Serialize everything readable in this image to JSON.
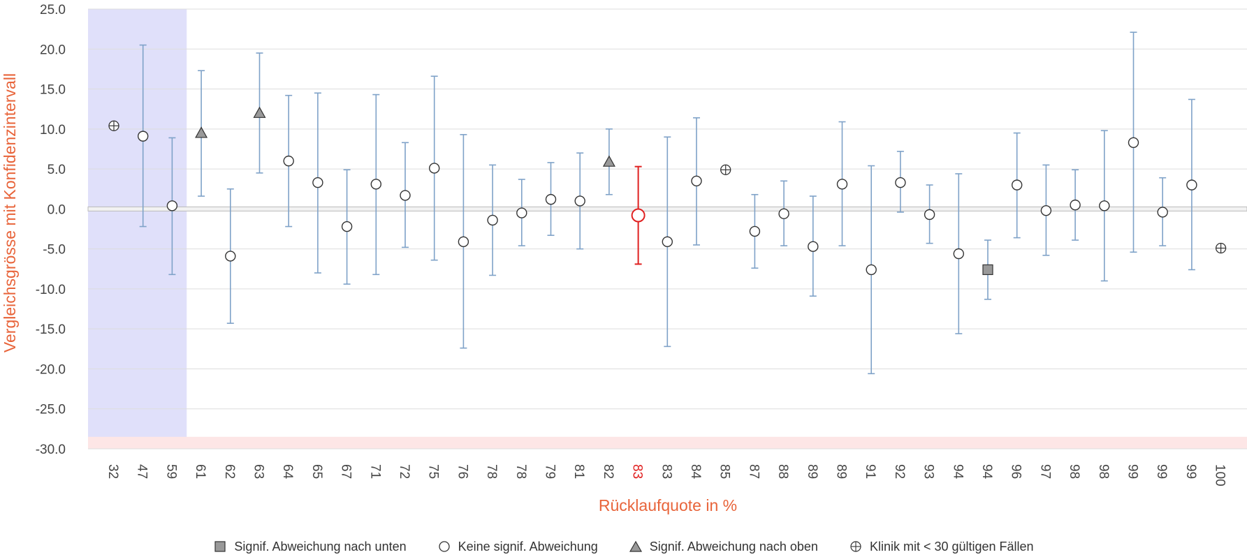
{
  "chart_data": {
    "type": "scatter",
    "title": "",
    "xlabel": "Rücklaufquote in %",
    "ylabel": "Vergleichsgrösse mit Konfidenzintervall",
    "ylim": [
      -30,
      25
    ],
    "yticks": [
      "25.0",
      "20.0",
      "15.0",
      "10.0",
      "5.0",
      "0.0",
      "-5.0",
      "-10.0",
      "-15.0",
      "-20.0",
      "-25.0",
      "-30.0"
    ],
    "grid": true,
    "reference_line": 0,
    "highlight_bands": [
      {
        "axis": "x",
        "from_index": 0,
        "to_index": 2,
        "color": "#e0e0fa"
      },
      {
        "axis": "y",
        "from": -30,
        "to": -28.5,
        "color": "#fde6e6"
      }
    ],
    "colors": {
      "errorbar": "#7fa2c8",
      "highlight": "#e02020",
      "marker_fill_gray": "#999999"
    },
    "points": [
      {
        "x": "32",
        "y": 10.4,
        "low": null,
        "high": null,
        "marker": "cross-circle"
      },
      {
        "x": "47",
        "y": 9.1,
        "low": -2.2,
        "high": 20.5,
        "marker": "circle"
      },
      {
        "x": "59",
        "y": 0.4,
        "low": -8.2,
        "high": 8.9,
        "marker": "circle"
      },
      {
        "x": "61",
        "y": 9.5,
        "low": 1.6,
        "high": 17.3,
        "marker": "triangle"
      },
      {
        "x": "62",
        "y": -5.9,
        "low": -14.3,
        "high": 2.5,
        "marker": "circle"
      },
      {
        "x": "63",
        "y": 12.0,
        "low": 4.5,
        "high": 19.5,
        "marker": "triangle"
      },
      {
        "x": "64",
        "y": 6.0,
        "low": -2.2,
        "high": 14.2,
        "marker": "circle"
      },
      {
        "x": "65",
        "y": 3.3,
        "low": -8.0,
        "high": 14.5,
        "marker": "circle"
      },
      {
        "x": "67",
        "y": -2.2,
        "low": -9.4,
        "high": 4.9,
        "marker": "circle"
      },
      {
        "x": "71",
        "y": 3.1,
        "low": -8.2,
        "high": 14.3,
        "marker": "circle"
      },
      {
        "x": "72",
        "y": 1.7,
        "low": -4.8,
        "high": 8.3,
        "marker": "circle"
      },
      {
        "x": "75",
        "y": 5.1,
        "low": -6.4,
        "high": 16.6,
        "marker": "circle"
      },
      {
        "x": "76",
        "y": -4.1,
        "low": -17.4,
        "high": 9.3,
        "marker": "circle"
      },
      {
        "x": "78",
        "y": -1.4,
        "low": -8.3,
        "high": 5.5,
        "marker": "circle"
      },
      {
        "x": "78",
        "y": -0.5,
        "low": -4.6,
        "high": 3.7,
        "marker": "circle"
      },
      {
        "x": "79",
        "y": 1.2,
        "low": -3.3,
        "high": 5.8,
        "marker": "circle"
      },
      {
        "x": "81",
        "y": 1.0,
        "low": -5.0,
        "high": 7.0,
        "marker": "circle"
      },
      {
        "x": "82",
        "y": 5.9,
        "low": 1.8,
        "high": 10.0,
        "marker": "triangle"
      },
      {
        "x": "83",
        "y": -0.8,
        "low": -6.9,
        "high": 5.3,
        "marker": "circle",
        "highlight": true
      },
      {
        "x": "83",
        "y": -4.1,
        "low": -17.2,
        "high": 9.0,
        "marker": "circle"
      },
      {
        "x": "84",
        "y": 3.5,
        "low": -4.5,
        "high": 11.4,
        "marker": "circle"
      },
      {
        "x": "85",
        "y": 4.9,
        "low": null,
        "high": null,
        "marker": "cross-circle"
      },
      {
        "x": "87",
        "y": -2.8,
        "low": -7.4,
        "high": 1.8,
        "marker": "circle"
      },
      {
        "x": "88",
        "y": -0.6,
        "low": -4.6,
        "high": 3.5,
        "marker": "circle"
      },
      {
        "x": "89",
        "y": -4.7,
        "low": -10.9,
        "high": 1.6,
        "marker": "circle"
      },
      {
        "x": "89",
        "y": 3.1,
        "low": -4.6,
        "high": 10.9,
        "marker": "circle"
      },
      {
        "x": "91",
        "y": -7.6,
        "low": -20.6,
        "high": 5.4,
        "marker": "circle"
      },
      {
        "x": "92",
        "y": 3.3,
        "low": -0.4,
        "high": 7.2,
        "marker": "circle"
      },
      {
        "x": "93",
        "y": -0.7,
        "low": -4.3,
        "high": 3.0,
        "marker": "circle"
      },
      {
        "x": "94",
        "y": -5.6,
        "low": -15.6,
        "high": 4.4,
        "marker": "circle"
      },
      {
        "x": "94",
        "y": -7.6,
        "low": -11.3,
        "high": -3.9,
        "marker": "square"
      },
      {
        "x": "96",
        "y": 3.0,
        "low": -3.6,
        "high": 9.5,
        "marker": "circle"
      },
      {
        "x": "97",
        "y": -0.2,
        "low": -5.8,
        "high": 5.5,
        "marker": "circle"
      },
      {
        "x": "98",
        "y": 0.5,
        "low": -3.9,
        "high": 4.9,
        "marker": "circle"
      },
      {
        "x": "98",
        "y": 0.4,
        "low": -9.0,
        "high": 9.8,
        "marker": "circle"
      },
      {
        "x": "99",
        "y": 8.3,
        "low": -5.4,
        "high": 22.1,
        "marker": "circle"
      },
      {
        "x": "99",
        "y": -0.4,
        "low": -4.6,
        "high": 3.9,
        "marker": "circle"
      },
      {
        "x": "99",
        "y": 3.0,
        "low": -7.6,
        "high": 13.7,
        "marker": "circle"
      },
      {
        "x": "100",
        "y": -4.9,
        "low": null,
        "high": null,
        "marker": "cross-circle"
      }
    ],
    "legend": [
      {
        "marker": "square",
        "label": "Signif. Abweichung nach unten"
      },
      {
        "marker": "circle",
        "label": "Keine signif. Abweichung"
      },
      {
        "marker": "triangle",
        "label": "Signif. Abweichung nach oben"
      },
      {
        "marker": "cross-circle",
        "label": "Klinik mit < 30 gültigen Fällen"
      }
    ]
  }
}
